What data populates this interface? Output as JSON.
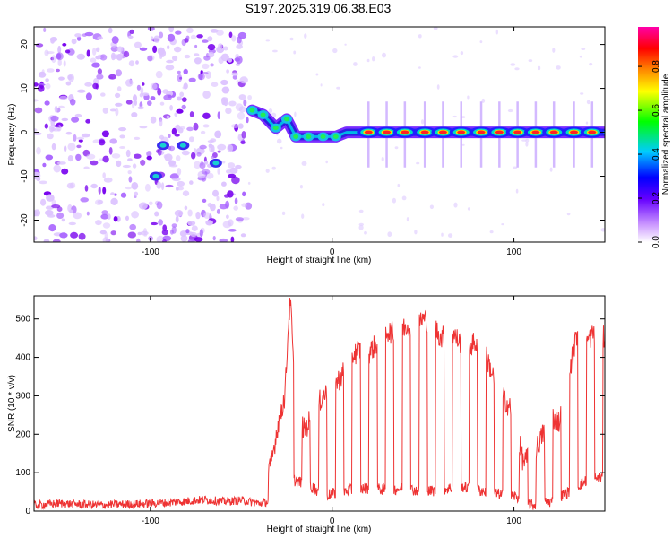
{
  "title": "S197.2025.319.06.38.E03",
  "chart_data": [
    {
      "type": "heatmap",
      "name": "spectrogram",
      "xlabel": "Height of straight line (km)",
      "ylabel": "Frequency (Hz)",
      "xlim": [
        -164,
        150
      ],
      "ylim": [
        -25,
        24
      ],
      "xticks": [
        -100,
        0,
        100
      ],
      "yticks": [
        20,
        10,
        0,
        -10,
        -20
      ],
      "noise_region_x": [
        -164,
        -46
      ],
      "ridge": [
        {
          "x": -44,
          "f": 5
        },
        {
          "x": -38,
          "f": 4
        },
        {
          "x": -31,
          "f": 1
        },
        {
          "x": -25,
          "f": 3
        },
        {
          "x": -20,
          "f": -1
        },
        {
          "x": -13,
          "f": -1
        },
        {
          "x": -5,
          "f": -1
        },
        {
          "x": 2,
          "f": -1
        },
        {
          "x": 8,
          "f": 0
        },
        {
          "x": 15,
          "f": 0
        },
        {
          "x": 150,
          "f": 0
        }
      ],
      "peaks_x": [
        20,
        30,
        40,
        51,
        61,
        71,
        82,
        92,
        102,
        112,
        122,
        133,
        143
      ],
      "spots": [
        {
          "x": -93,
          "f": -3
        },
        {
          "x": -82,
          "f": -3
        },
        {
          "x": -64,
          "f": -7
        },
        {
          "x": -97,
          "f": -10
        }
      ],
      "colorbar": {
        "label": "Normalized spectral amplitude",
        "ticks": [
          "0.0",
          "0.2",
          "0.4",
          "0.6",
          "0.8"
        ],
        "tick_values": [
          0.0,
          0.2,
          0.4,
          0.6,
          0.8
        ],
        "range": [
          0,
          0.98
        ],
        "colors": [
          "#ffffff",
          "#cc99ff",
          "#6600ff",
          "#0000ff",
          "#00ccff",
          "#00ff00",
          "#ffff00",
          "#ff8800",
          "#ff0000",
          "#ff00aa"
        ]
      }
    },
    {
      "type": "line",
      "name": "snr",
      "xlabel": "Height of straight line (km)",
      "ylabel": "SNR (10 * v/v)",
      "xlim": [
        -164,
        150
      ],
      "ylim": [
        0,
        560
      ],
      "xticks": [
        -100,
        0,
        100
      ],
      "yticks": [
        0,
        100,
        200,
        300,
        400,
        500
      ],
      "color": "#ee3333",
      "series": [
        {
          "name": "SNR",
          "x": [
            -164,
            -150,
            -130,
            -110,
            -90,
            -80,
            -70,
            -60,
            -50,
            -40,
            -35
          ],
          "y": [
            15,
            20,
            16,
            18,
            22,
            26,
            30,
            25,
            28,
            20,
            25
          ]
        },
        {
          "name": "high",
          "x": [
            -34,
            -30,
            -26,
            -24,
            -23,
            -20,
            -15,
            -10,
            -5,
            0,
            5,
            10,
            15,
            20,
            25,
            30,
            35,
            40,
            45,
            50,
            55,
            60,
            65,
            70,
            75,
            80,
            85,
            90,
            95,
            100,
            105,
            110,
            115,
            120,
            125,
            130,
            135,
            140,
            145,
            150
          ],
          "y": [
            110,
            220,
            300,
            490,
            555,
            250,
            210,
            260,
            300,
            320,
            350,
            400,
            420,
            410,
            440,
            470,
            460,
            480,
            490,
            500,
            490,
            450,
            470,
            440,
            430,
            440,
            400,
            330,
            290,
            250,
            130,
            140,
            190,
            250,
            230,
            350,
            470,
            440,
            470,
            450
          ]
        },
        {
          "name": "low",
          "x": [
            -34,
            -20,
            -10,
            -5,
            0,
            10,
            20,
            30,
            40,
            50,
            60,
            70,
            80,
            90,
            100,
            110,
            120,
            130,
            140,
            150
          ],
          "y": [
            60,
            80,
            60,
            40,
            45,
            55,
            60,
            55,
            60,
            50,
            55,
            65,
            55,
            45,
            40,
            15,
            25,
            50,
            80,
            90
          ]
        }
      ]
    }
  ]
}
